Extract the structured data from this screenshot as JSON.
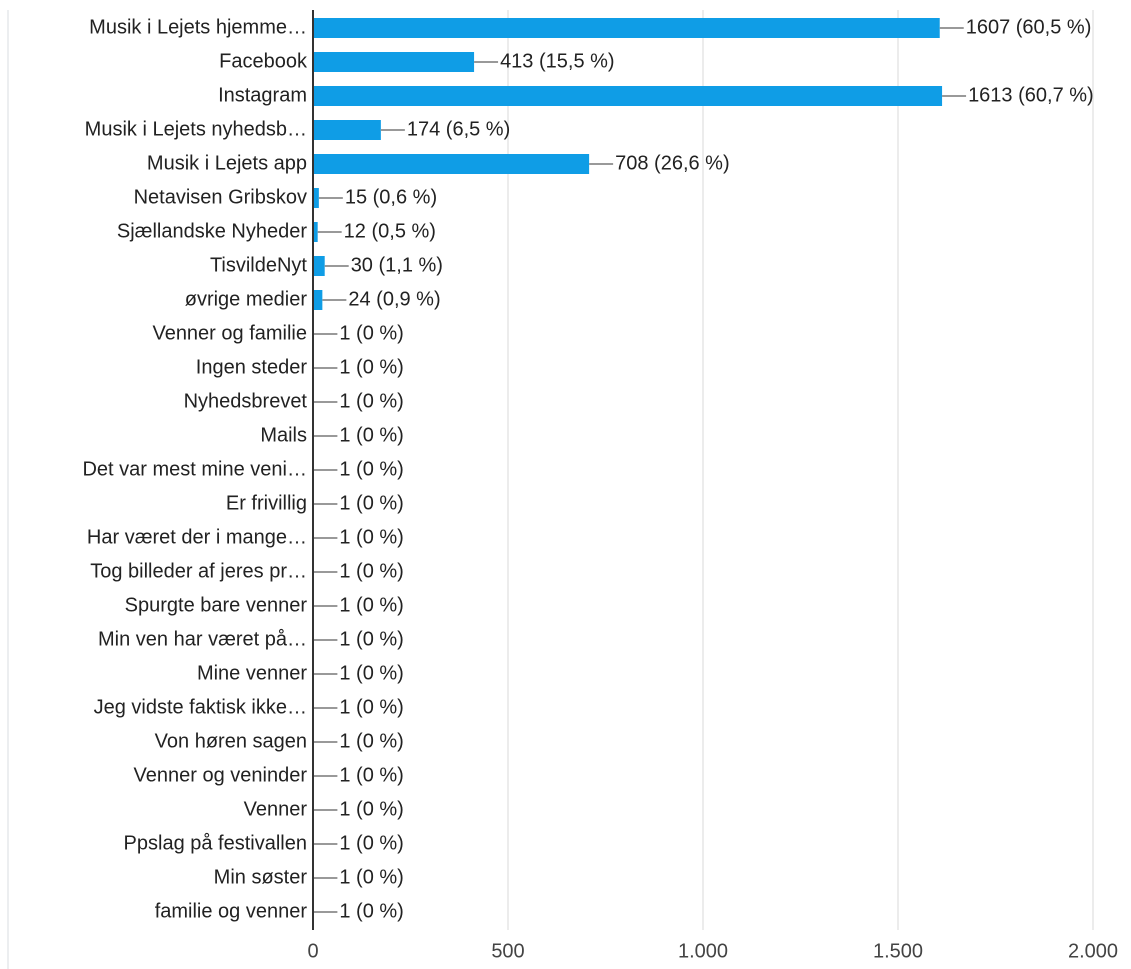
{
  "chart_data": {
    "type": "barh",
    "categories": [
      "Musik i Lejets hjemme…",
      "Facebook",
      "Instagram",
      "Musik i Lejets nyhedsb…",
      "Musik i Lejets app",
      "Netavisen Gribskov",
      "Sjællandske Nyheder",
      "TisvildeNyt",
      "øvrige medier",
      "Venner og familie",
      "Ingen steder",
      "Nyhedsbrevet",
      "Mails",
      "Det var mest mine veni…",
      "Er frivillig",
      "Har været der i mange…",
      "Tog billeder af jeres pr…",
      "Spurgte bare venner",
      "Min ven har været på…",
      "Mine venner",
      "Jeg vidste faktisk ikke…",
      "Von høren sagen",
      "Venner og veninder",
      "Venner",
      "Ppslag på festivallen",
      "Min søster",
      "familie og venner"
    ],
    "values": [
      1607,
      413,
      1613,
      174,
      708,
      15,
      12,
      30,
      24,
      1,
      1,
      1,
      1,
      1,
      1,
      1,
      1,
      1,
      1,
      1,
      1,
      1,
      1,
      1,
      1,
      1,
      1
    ],
    "value_labels": [
      "1607 (60,5 %)",
      "413 (15,5 %)",
      "1613 (60,7 %)",
      "174 (6,5 %)",
      "708 (26,6 %)",
      "15 (0,6 %)",
      "12 (0,5 %)",
      "30 (1,1 %)",
      "24 (0,9 %)",
      "1 (0 %)",
      "1 (0 %)",
      "1 (0 %)",
      "1 (0 %)",
      "1 (0 %)",
      "1 (0 %)",
      "1 (0 %)",
      "1 (0 %)",
      "1 (0 %)",
      "1 (0 %)",
      "1 (0 %)",
      "1 (0 %)",
      "1 (0 %)",
      "1 (0 %)",
      "1 (0 %)",
      "1 (0 %)",
      "1 (0 %)",
      "1 (0 %)"
    ],
    "color": "#0f9de6",
    "xlim": [
      0,
      2000
    ],
    "xticks": [
      0,
      500,
      {
        "value": 1000,
        "label": "1.000"
      },
      {
        "value": 1500,
        "label": "1.500"
      },
      {
        "value": 2000,
        "label": "2.000"
      }
    ],
    "grid": true
  }
}
